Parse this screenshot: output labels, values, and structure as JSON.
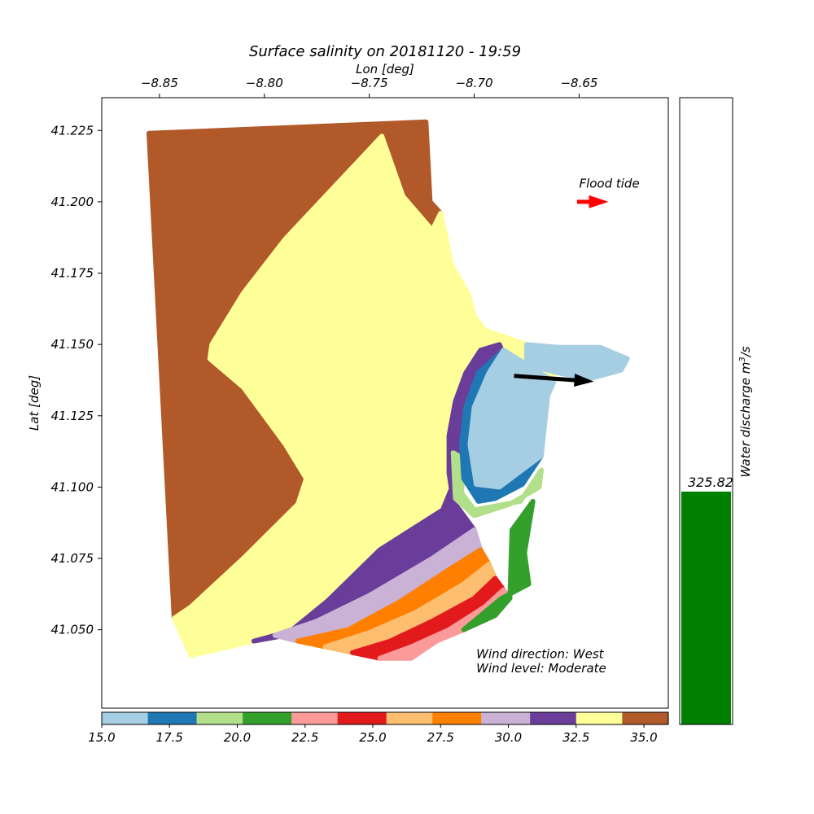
{
  "chart_data": [
    {
      "type": "scatter",
      "title": "Surface salinity on 20181120 - 19:59",
      "xlabel": "Lon [deg]",
      "ylabel": "Lat [deg]",
      "xlim": [
        -8.8775,
        -8.6075
      ],
      "ylim": [
        41.0225,
        41.2365
      ],
      "x_ticks": [
        -8.85,
        -8.8,
        -8.75,
        -8.7,
        -8.65
      ],
      "x_tick_labels": [
        "−8.85",
        "−8.80",
        "−8.75",
        "−8.70",
        "−8.65"
      ],
      "y_ticks": [
        41.05,
        41.075,
        41.1,
        41.125,
        41.15,
        41.175,
        41.2,
        41.225
      ],
      "y_tick_labels": [
        "41.050",
        "41.075",
        "41.100",
        "41.125",
        "41.150",
        "41.175",
        "41.200",
        "41.225"
      ],
      "x_axis_position": "top",
      "grid": false,
      "regions": [
        {
          "salinity_class": 35,
          "polygon": [
            [
              -8.855,
              41.224
            ],
            [
              -8.723,
              41.228
            ],
            [
              -8.721,
              41.2
            ],
            [
              -8.716,
              41.196
            ],
            [
              -8.72,
              41.19
            ],
            [
              -8.734,
              41.202
            ],
            [
              -8.744,
              41.223
            ],
            [
              -8.79,
              41.187
            ],
            [
              -8.81,
              41.168
            ],
            [
              -8.825,
              41.15
            ],
            [
              -8.826,
              41.145
            ],
            [
              -8.81,
              41.135
            ],
            [
              -8.79,
              41.115
            ],
            [
              -8.78,
              41.103
            ],
            [
              -8.784,
              41.094
            ],
            [
              -8.81,
              41.075
            ],
            [
              -8.835,
              41.058
            ],
            [
              -8.843,
              41.054
            ],
            [
              -8.855,
              41.224
            ]
          ]
        },
        {
          "salinity_class": 33,
          "polygon": [
            [
              -8.843,
              41.054
            ],
            [
              -8.835,
              41.058
            ],
            [
              -8.81,
              41.075
            ],
            [
              -8.784,
              41.094
            ],
            [
              -8.78,
              41.103
            ],
            [
              -8.79,
              41.115
            ],
            [
              -8.81,
              41.135
            ],
            [
              -8.826,
              41.145
            ],
            [
              -8.825,
              41.15
            ],
            [
              -8.81,
              41.168
            ],
            [
              -8.79,
              41.187
            ],
            [
              -8.744,
              41.223
            ],
            [
              -8.734,
              41.202
            ],
            [
              -8.72,
              41.19
            ],
            [
              -8.716,
              41.196
            ],
            [
              -8.713,
              41.186
            ],
            [
              -8.711,
              41.178
            ],
            [
              -8.703,
              41.168
            ],
            [
              -8.7,
              41.16
            ],
            [
              -8.695,
              41.155
            ],
            [
              -8.675,
              41.15
            ],
            [
              -8.663,
              41.147
            ],
            [
              -8.662,
              41.137
            ],
            [
              -8.675,
              41.143
            ],
            [
              -8.682,
              41.14
            ],
            [
              -8.69,
              41.138
            ],
            [
              -8.7,
              41.125
            ],
            [
              -8.705,
              41.11
            ],
            [
              -8.715,
              41.092
            ],
            [
              -8.745,
              41.078
            ],
            [
              -8.77,
              41.06
            ],
            [
              -8.79,
              41.048
            ],
            [
              -8.805,
              41.046
            ],
            [
              -8.835,
              41.041
            ],
            [
              -8.843,
              41.054
            ]
          ]
        },
        {
          "salinity_class": 31.5,
          "polygon": [
            [
              -8.805,
              41.046
            ],
            [
              -8.79,
              41.048
            ],
            [
              -8.77,
              41.06
            ],
            [
              -8.745,
              41.078
            ],
            [
              -8.715,
              41.092
            ],
            [
              -8.705,
              41.11
            ],
            [
              -8.7,
              41.125
            ],
            [
              -8.69,
              41.138
            ],
            [
              -8.682,
              41.14
            ],
            [
              -8.688,
              41.15
            ],
            [
              -8.697,
              41.148
            ],
            [
              -8.704,
              41.14
            ],
            [
              -8.709,
              41.13
            ],
            [
              -8.712,
              41.118
            ],
            [
              -8.712,
              41.105
            ],
            [
              -8.71,
              41.095
            ],
            [
              -8.7,
              41.085
            ],
            [
              -8.72,
              41.075
            ],
            [
              -8.75,
              41.062
            ],
            [
              -8.775,
              41.053
            ],
            [
              -8.795,
              41.048
            ],
            [
              -8.805,
              41.046
            ]
          ]
        },
        {
          "salinity_class": 30,
          "polygon": [
            [
              -8.795,
              41.048
            ],
            [
              -8.775,
              41.053
            ],
            [
              -8.75,
              41.062
            ],
            [
              -8.72,
              41.075
            ],
            [
              -8.7,
              41.085
            ],
            [
              -8.697,
              41.078
            ],
            [
              -8.71,
              41.072
            ],
            [
              -8.735,
              41.06
            ],
            [
              -8.76,
              41.05
            ],
            [
              -8.784,
              41.046
            ],
            [
              -8.795,
              41.048
            ]
          ]
        },
        {
          "salinity_class": 28,
          "polygon": [
            [
              -8.784,
              41.046
            ],
            [
              -8.76,
              41.05
            ],
            [
              -8.735,
              41.06
            ],
            [
              -8.71,
              41.072
            ],
            [
              -8.697,
              41.078
            ],
            [
              -8.693,
              41.073
            ],
            [
              -8.705,
              41.066
            ],
            [
              -8.728,
              41.056
            ],
            [
              -8.75,
              41.049
            ],
            [
              -8.771,
              41.044
            ],
            [
              -8.784,
              41.046
            ]
          ]
        },
        {
          "salinity_class": 26.5,
          "polygon": [
            [
              -8.771,
              41.044
            ],
            [
              -8.75,
              41.049
            ],
            [
              -8.728,
              41.056
            ],
            [
              -8.705,
              41.066
            ],
            [
              -8.693,
              41.073
            ],
            [
              -8.69,
              41.068
            ],
            [
              -8.7,
              41.061
            ],
            [
              -8.72,
              41.053
            ],
            [
              -8.74,
              41.046
            ],
            [
              -8.758,
              41.042
            ],
            [
              -8.771,
              41.044
            ]
          ]
        },
        {
          "salinity_class": 24.5,
          "polygon": [
            [
              -8.758,
              41.042
            ],
            [
              -8.74,
              41.046
            ],
            [
              -8.72,
              41.053
            ],
            [
              -8.7,
              41.061
            ],
            [
              -8.69,
              41.068
            ],
            [
              -8.686,
              41.064
            ],
            [
              -8.695,
              41.058
            ],
            [
              -8.712,
              41.05
            ],
            [
              -8.73,
              41.044
            ],
            [
              -8.745,
              41.04
            ],
            [
              -8.758,
              41.042
            ]
          ]
        },
        {
          "salinity_class": 23,
          "polygon": [
            [
              -8.745,
              41.04
            ],
            [
              -8.73,
              41.044
            ],
            [
              -8.712,
              41.05
            ],
            [
              -8.695,
              41.058
            ],
            [
              -8.686,
              41.064
            ],
            [
              -8.683,
              41.061
            ],
            [
              -8.69,
              41.055
            ],
            [
              -8.705,
              41.05
            ],
            [
              -8.718,
              41.046
            ],
            [
              -8.73,
              41.04
            ],
            [
              -8.745,
              41.04
            ]
          ]
        },
        {
          "salinity_class": 21.5,
          "polygon": [
            [
              -8.705,
              41.05
            ],
            [
              -8.69,
              41.055
            ],
            [
              -8.683,
              41.061
            ],
            [
              -8.682,
              41.085
            ],
            [
              -8.672,
              41.095
            ],
            [
              -8.676,
              41.077
            ],
            [
              -8.674,
              41.066
            ],
            [
              -8.687,
              41.061
            ],
            [
              -8.705,
              41.05
            ]
          ]
        },
        {
          "salinity_class": 19.5,
          "polygon": [
            [
              -8.705,
              41.11
            ],
            [
              -8.706,
              41.098
            ],
            [
              -8.7,
              41.092
            ],
            [
              -8.678,
              41.095
            ],
            [
              -8.668,
              41.106
            ],
            [
              -8.669,
              41.1
            ],
            [
              -8.683,
              41.094
            ],
            [
              -8.7,
              41.09
            ],
            [
              -8.709,
              41.096
            ],
            [
              -8.71,
              41.112
            ],
            [
              -8.705,
              41.11
            ]
          ]
        },
        {
          "salinity_class": 18,
          "polygon": [
            [
              -8.686,
              41.148
            ],
            [
              -8.698,
              41.14
            ],
            [
              -8.704,
              41.128
            ],
            [
              -8.706,
              41.115
            ],
            [
              -8.705,
              41.103
            ],
            [
              -8.698,
              41.095
            ],
            [
              -8.69,
              41.096
            ],
            [
              -8.677,
              41.101
            ],
            [
              -8.668,
              41.111
            ],
            [
              -8.688,
              41.1
            ],
            [
              -8.699,
              41.101
            ],
            [
              -8.702,
              41.115
            ],
            [
              -8.7,
              41.128
            ],
            [
              -8.693,
              41.14
            ],
            [
              -8.686,
              41.148
            ]
          ]
        },
        {
          "salinity_class": 16,
          "polygon": [
            [
              -8.686,
              41.148
            ],
            [
              -8.693,
              41.14
            ],
            [
              -8.7,
              41.128
            ],
            [
              -8.702,
              41.115
            ],
            [
              -8.699,
              41.101
            ],
            [
              -8.688,
              41.1
            ],
            [
              -8.668,
              41.111
            ],
            [
              -8.667,
              41.118
            ],
            [
              -8.665,
              41.132
            ],
            [
              -8.662,
              41.137
            ],
            [
              -8.675,
              41.143
            ],
            [
              -8.686,
              41.148
            ]
          ]
        },
        {
          "salinity_class": 16,
          "polygon": [
            [
              -8.675,
              41.15
            ],
            [
              -8.66,
              41.149
            ],
            [
              -8.64,
              41.149
            ],
            [
              -8.627,
              41.145
            ],
            [
              -8.63,
              41.141
            ],
            [
              -8.645,
              41.138
            ],
            [
              -8.66,
              41.14
            ],
            [
              -8.675,
              41.143
            ],
            [
              -8.675,
              41.15
            ]
          ]
        }
      ],
      "annotations": [
        {
          "text": "Flood tide",
          "at": [
            -8.65,
            41.205
          ]
        },
        {
          "text": "Wind direction: West",
          "at": [
            -8.699,
            41.04
          ]
        },
        {
          "text": "Wind level: Moderate",
          "at": [
            -8.699,
            41.035
          ]
        }
      ],
      "arrows": [
        {
          "name": "flood-tide-arrow",
          "color": "#ff0000",
          "from": [
            -8.651,
            41.2
          ],
          "to": [
            -8.636,
            41.2
          ]
        },
        {
          "name": "wind-arrow",
          "color": "#000000",
          "from": [
            -8.681,
            41.139
          ],
          "to": [
            -8.643,
            41.137
          ]
        }
      ]
    },
    {
      "type": "colorbar",
      "ticks": [
        15.0,
        17.5,
        20.0,
        22.5,
        25.0,
        27.5,
        30.0,
        32.5,
        35.0
      ],
      "tick_labels": [
        "15.0",
        "17.5",
        "20.0",
        "22.5",
        "25.0",
        "27.5",
        "30.0",
        "32.5",
        "35.0"
      ],
      "range": [
        15.0,
        35.9
      ],
      "bins": [
        {
          "min": 15.0,
          "max": 16.7,
          "color": "#a6cee3"
        },
        {
          "min": 16.7,
          "max": 18.5,
          "color": "#1f78b4"
        },
        {
          "min": 18.5,
          "max": 20.2,
          "color": "#b2df8a"
        },
        {
          "min": 20.2,
          "max": 22.0,
          "color": "#33a02c"
        },
        {
          "min": 22.0,
          "max": 23.7,
          "color": "#fb9a99"
        },
        {
          "min": 23.7,
          "max": 25.5,
          "color": "#e31a1c"
        },
        {
          "min": 25.5,
          "max": 27.2,
          "color": "#fdbf6f"
        },
        {
          "min": 27.2,
          "max": 29.0,
          "color": "#ff7f00"
        },
        {
          "min": 29.0,
          "max": 30.8,
          "color": "#cab2d6"
        },
        {
          "min": 30.8,
          "max": 32.5,
          "color": "#6a3d9a"
        },
        {
          "min": 32.5,
          "max": 34.2,
          "color": "#ffff99"
        },
        {
          "min": 34.2,
          "max": 35.9,
          "color": "#b15928"
        }
      ]
    },
    {
      "type": "bar",
      "ylabel": "Water discharge m³/s",
      "ylabel_text": "Water discharge m",
      "ylabel_sup": "3",
      "ylabel_suffix": "/s",
      "ylim": [
        0,
        877
      ],
      "values": [
        325.82
      ],
      "value_label": "325.82",
      "color": "#008000"
    }
  ]
}
